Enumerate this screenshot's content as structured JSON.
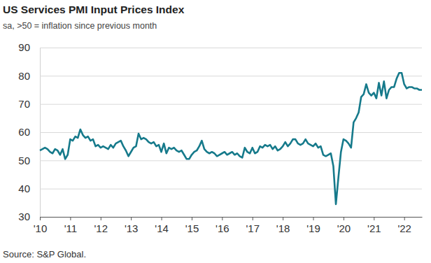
{
  "chart_data": {
    "type": "line",
    "title": "US Services PMI Input Prices Index",
    "subtitle": "sa, >50 = inflation since previous month",
    "annotations": [
      "Source: S&P Global."
    ],
    "color": "#167a8b",
    "grid": true,
    "ylim": [
      30,
      90
    ],
    "yticks": [
      30,
      40,
      50,
      60,
      70,
      80,
      90
    ],
    "categories": [
      "'10",
      null,
      null,
      null,
      null,
      null,
      null,
      null,
      null,
      null,
      null,
      null,
      "'11",
      null,
      null,
      null,
      null,
      null,
      null,
      null,
      null,
      null,
      null,
      null,
      "'12",
      null,
      null,
      null,
      null,
      null,
      null,
      null,
      null,
      null,
      null,
      null,
      "'13",
      null,
      null,
      null,
      null,
      null,
      null,
      null,
      null,
      null,
      null,
      null,
      "'14",
      null,
      null,
      null,
      null,
      null,
      null,
      null,
      null,
      null,
      null,
      null,
      "'15",
      null,
      null,
      null,
      null,
      null,
      null,
      null,
      null,
      null,
      null,
      null,
      "'16",
      null,
      null,
      null,
      null,
      null,
      null,
      null,
      null,
      null,
      null,
      null,
      "'17",
      null,
      null,
      null,
      null,
      null,
      null,
      null,
      null,
      null,
      null,
      null,
      "'18",
      null,
      null,
      null,
      null,
      null,
      null,
      null,
      null,
      null,
      null,
      null,
      "'19",
      null,
      null,
      null,
      null,
      null,
      null,
      null,
      null,
      null,
      null,
      null,
      "'20",
      null,
      null,
      null,
      null,
      null,
      null,
      null,
      null,
      null,
      null,
      null,
      "'21",
      null,
      null,
      null,
      null,
      null,
      null,
      null,
      null,
      null,
      null,
      null,
      "'22",
      null,
      null,
      null,
      null,
      null,
      null,
      null
    ],
    "values": [
      53.5,
      54,
      54.5,
      54,
      53,
      52.5,
      54,
      53.5,
      52,
      54,
      50.5,
      52,
      57.5,
      57,
      58.5,
      58,
      61,
      59,
      58,
      58.5,
      57,
      57.5,
      55,
      55.5,
      54.5,
      55,
      54.5,
      54,
      55.5,
      54.5,
      56,
      56.5,
      57,
      55,
      53.5,
      51.5,
      53,
      54.5,
      55,
      59.5,
      57.5,
      58,
      57.5,
      56.5,
      56,
      56.5,
      55,
      55.5,
      53,
      56,
      52.5,
      54.5,
      54,
      54.5,
      53.5,
      53,
      53.5,
      52,
      50.5,
      50.5,
      52,
      53,
      53.5,
      55,
      57,
      54,
      53,
      52.5,
      53,
      52.5,
      51.5,
      52,
      52.5,
      53,
      52,
      52.5,
      53,
      52,
      52.5,
      51.5,
      51,
      54.5,
      53,
      52.5,
      54.5,
      52.5,
      53,
      55,
      54.5,
      55.5,
      55,
      55.5,
      54,
      55,
      53.5,
      54,
      55,
      56.5,
      55,
      56,
      57.5,
      57.5,
      56,
      55.5,
      56,
      57.5,
      56,
      55.5,
      55,
      56,
      54.5,
      55,
      52,
      51.5,
      52,
      52.5,
      48,
      34.5,
      44,
      53,
      57.5,
      57,
      56,
      54.5,
      63.5,
      65,
      67,
      72.5,
      73.5,
      77,
      74,
      73,
      74,
      72,
      77.5,
      73,
      78,
      72,
      75,
      76,
      76,
      79,
      81,
      81,
      77,
      75.5,
      76,
      76,
      75.5,
      75.5,
      75,
      75
    ]
  }
}
